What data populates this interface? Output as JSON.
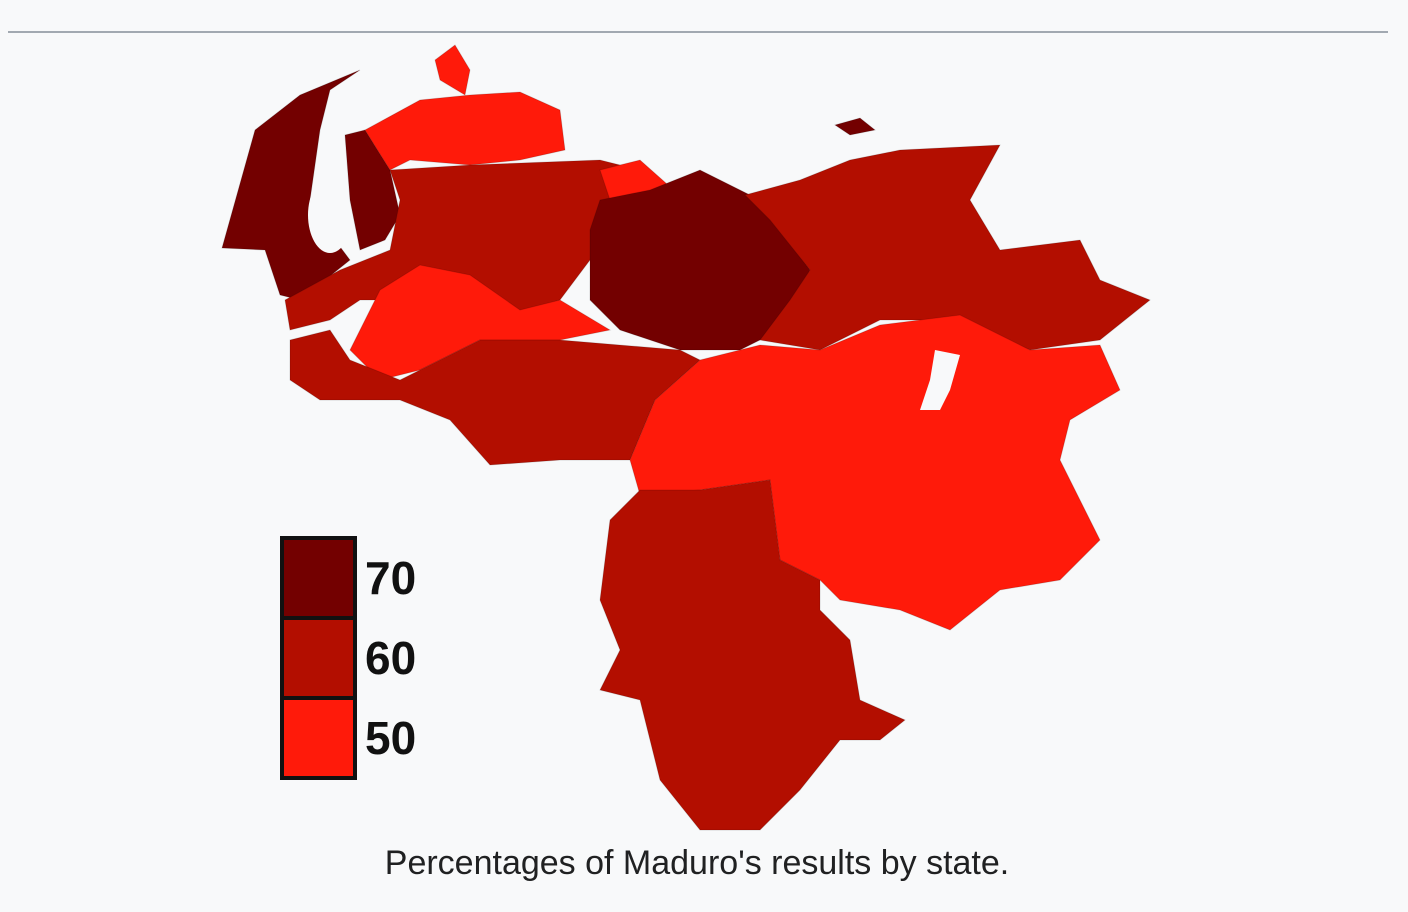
{
  "legend": {
    "items": [
      {
        "label": "70",
        "color": "#730000"
      },
      {
        "label": "60",
        "color": "#b30e00"
      },
      {
        "label": "50",
        "color": "#ff1a0a"
      }
    ]
  },
  "caption": "Percentages of Maduro's results by state."
}
